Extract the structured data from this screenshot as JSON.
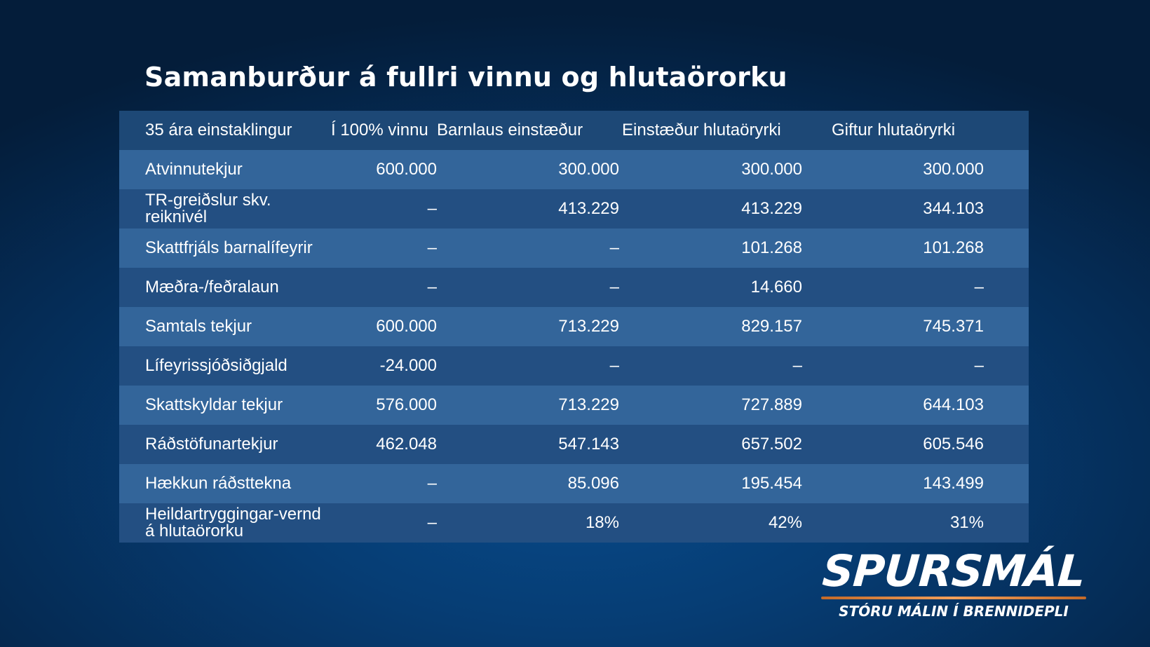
{
  "title": "Samanburður á fullri vinnu og hlutaörorku",
  "chart_data": {
    "type": "table",
    "title": "Samanburður á fullri vinnu og hlutaörorku",
    "columns": [
      "35 ára einstaklingur",
      "Í 100% vinnu",
      "Barnlaus einstæður",
      "Einstæður hlutaöryrki",
      "Giftur hlutaöryrki"
    ],
    "rows": [
      [
        "Atvinnutekjur",
        "600.000",
        "300.000",
        "300.000",
        "300.000"
      ],
      [
        "TR-greiðslur skv. reiknivél",
        "–",
        "413.229",
        "413.229",
        "344.103"
      ],
      [
        "Skattfrjáls barnalífeyrir",
        "–",
        "–",
        "101.268",
        "101.268"
      ],
      [
        "Mæðra-/feðralaun",
        "–",
        "–",
        "14.660",
        "–"
      ],
      [
        "Samtals tekjur",
        "600.000",
        "713.229",
        "829.157",
        "745.371"
      ],
      [
        "Lífeyrissjóðsiðgjald",
        "-24.000",
        "–",
        "–",
        "–"
      ],
      [
        "Skattskyldar tekjur",
        "576.000",
        "713.229",
        "727.889",
        "644.103"
      ],
      [
        "Ráðstöfunartekjur",
        "462.048",
        "547.143",
        "657.502",
        "605.546"
      ],
      [
        "Hækkun ráðsttekna",
        "–",
        "85.096",
        "195.454",
        "143.499"
      ],
      [
        "Heildartryggingar-vernd á hlutaörorku",
        "–",
        "18%",
        "42%",
        "31%"
      ]
    ]
  },
  "brand": {
    "name": "SPURSMÁL",
    "tagline": "STÓRU MÁLIN Í BRENNIDEPLI"
  },
  "colors": {
    "header_row": "#1d4876",
    "row_light": "#33659a",
    "row_dark": "#234f82",
    "accent_line": "#f3a05a"
  }
}
